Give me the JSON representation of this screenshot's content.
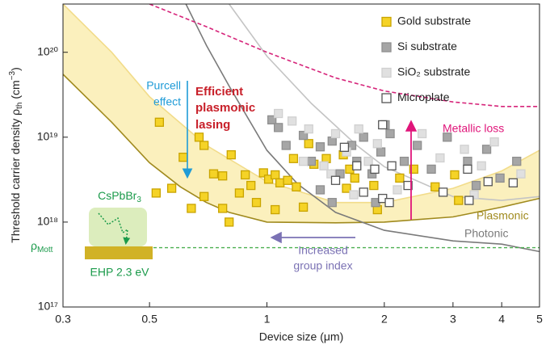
{
  "chart_data": {
    "type": "scatter",
    "x_label": "Device size (μm)",
    "y_label": {
      "text": "Threshold carrier density ρ",
      "sub": "th",
      "unit_open": " (cm",
      "sup": "−3",
      "unit_close": ")"
    },
    "xscale": "log",
    "yscale": "log",
    "xlim": [
      0.3,
      5
    ],
    "ylim": [
      1e+17,
      3.7e+20
    ],
    "xticks": [
      0.3,
      0.5,
      1,
      2,
      3,
      4,
      5
    ],
    "yticks": [
      {
        "value": 1e+17,
        "label": "10¹⁷"
      },
      {
        "value": 1e+18,
        "label": "10¹⁸"
      },
      {
        "value": 1e+19,
        "label": "10¹⁹"
      },
      {
        "value": 1e+20,
        "label": "10²⁰"
      }
    ],
    "legend": "upper right",
    "series": [
      {
        "name": "Gold substrate",
        "color": "#f5d327",
        "edge_color": "#c9a400",
        "x": [
          0.53,
          0.52,
          0.57,
          0.61,
          0.67,
          0.69,
          0.73,
          0.77,
          0.81,
          0.88,
          0.91,
          0.85,
          0.98,
          1.01,
          1.05,
          1.08,
          1.13,
          1.19,
          0.94,
          0.8,
          0.77,
          0.69,
          0.64,
          1.17,
          1.28,
          1.32,
          1.42,
          1.57,
          1.63,
          1.68,
          1.6,
          1.88,
          1.92,
          2.19,
          2.38,
          2.7,
          3.03,
          3.1,
          1.24,
          1.05
        ],
        "values": [
          1.5e+19,
          2.2e+18,
          2.5e+18,
          5.8e+18,
          1e+19,
          8e+18,
          3.7e+18,
          3.5e+18,
          6.2e+18,
          3.6e+18,
          2.7e+18,
          2.2e+18,
          3.8e+18,
          3.2e+18,
          3.6e+18,
          2.9e+18,
          3.1e+18,
          2.6e+18,
          1.7e+18,
          1e+18,
          1.45e+18,
          2e+18,
          1.45e+18,
          5.6e+18,
          8.4e+18,
          4.8e+18,
          5.6e+18,
          6.2e+18,
          4.2e+18,
          3.3e+18,
          2.5e+18,
          2.7e+18,
          1.4e+18,
          3.3e+18,
          4.2e+18,
          2.6e+18,
          3.6e+18,
          1.8e+18,
          1.5e+18,
          1.4e+18
        ]
      },
      {
        "name": "Si substrate",
        "color": "#a6a6a6",
        "edge_color": "#8f8f8f",
        "x": [
          1.03,
          1.07,
          1.12,
          1.24,
          1.3,
          1.37,
          1.47,
          1.54,
          1.65,
          1.7,
          1.77,
          1.86,
          1.96,
          2.07,
          2.25,
          2.43,
          2.64,
          2.9,
          3.27,
          3.44,
          3.66,
          3.96,
          4.37,
          1.37,
          1.47,
          2.01,
          1.9
        ],
        "values": [
          1.6e+19,
          1.3e+19,
          8e+18,
          1.05e+19,
          5.2e+18,
          7.7e+18,
          9e+18,
          3.7e+18,
          8e+18,
          5.2e+18,
          1e+19,
          3.7e+18,
          6.7e+18,
          1.1e+19,
          5.2e+18,
          8e+18,
          4.2e+18,
          1e+19,
          5.2e+18,
          2.7e+18,
          7.2e+18,
          3.3e+18,
          5.2e+18,
          2.4e+18,
          1.7e+18,
          1.4e+19,
          1.7e+18
        ]
      },
      {
        "name": "SiO₂ substrate",
        "color": "#e0e0e0",
        "edge_color": "#d0d0d0",
        "x": [
          1.07,
          1.16,
          1.28,
          1.24,
          1.4,
          1.5,
          1.6,
          1.67,
          1.82,
          1.92,
          2.16,
          2.5,
          2.78,
          3.21,
          3.55,
          3.83,
          3.4,
          4.48,
          1.46,
          1.72
        ],
        "values": [
          1.9e+19,
          1.55e+19,
          1.25e+19,
          5.2e+18,
          4.6e+18,
          1.1e+19,
          6.7e+18,
          2.1e+18,
          5.2e+18,
          8.4e+18,
          2.4e+18,
          1.1e+19,
          5.7e+18,
          7.2e+18,
          4.6e+18,
          8.8e+18,
          2.1e+18,
          3.7e+18,
          3.7e+18,
          1.25e+19
        ]
      },
      {
        "name": "Microplate",
        "color": "#ffffff",
        "edge_color": "#555555",
        "x": [
          1.58,
          1.5,
          1.7,
          1.77,
          1.89,
          1.98,
          1.98,
          2.09,
          2.3,
          2.83,
          3.27,
          3.3,
          3.69,
          4.28,
          2.06
        ],
        "values": [
          7.6e+18,
          3.1e+18,
          4.6e+18,
          2.25e+18,
          4.2e+18,
          1.9e+18,
          1.4e+19,
          4.6e+18,
          2.7e+18,
          2.25e+18,
          4.2e+18,
          1.8e+18,
          3e+18,
          2.9e+18,
          1.7e+18
        ]
      }
    ],
    "curves": [
      {
        "name": "Plasmonic",
        "color": "#a08a1e",
        "x": [
          0.3,
          0.4,
          0.5,
          0.6,
          0.7,
          0.8,
          1,
          1.5,
          2,
          3,
          4,
          5
        ],
        "values": [
          5.5e+19,
          1.5e+19,
          5e+18,
          2.6e+18,
          1.7e+18,
          1.3e+18,
          1e+18,
          9.8e+17,
          1e+18,
          1.15e+18,
          1.5e+18,
          1.9e+18
        ]
      },
      {
        "color": "#f2dc8a",
        "fill": "#fbf0bd",
        "x": [
          0.3,
          0.4,
          0.5,
          0.7,
          1,
          1.5,
          2,
          3,
          4,
          5
        ],
        "values": [
          3.7e+20,
          1e+20,
          3e+19,
          8e+18,
          3e+18,
          1.7e+18,
          1.7e+18,
          2.5e+18,
          4e+18,
          7e+18
        ]
      },
      {
        "name": "Photonic",
        "color": "#7a7a7a",
        "x": [
          0.62,
          0.7,
          0.8,
          1,
          1.2,
          1.5,
          2,
          3,
          4,
          5
        ],
        "values": [
          3.7e+20,
          1.2e+20,
          4e+19,
          7e+18,
          2.8e+18,
          1.3e+18,
          8e+17,
          6e+17,
          5.5e+17,
          4.5e+17
        ]
      },
      {
        "color": "#c4c4c4",
        "x": [
          0.8,
          1,
          1.3,
          1.7,
          2,
          3,
          4,
          5
        ],
        "values": [
          3.7e+20,
          9e+19,
          2.5e+19,
          8e+18,
          4.5e+18,
          2e+18,
          1.8e+18,
          2e+18
        ]
      },
      {
        "color": "#d6247a",
        "dash": true,
        "x": [
          0.5,
          0.7,
          1,
          1.5,
          2,
          3,
          4,
          5
        ],
        "values": [
          3.7e+20,
          2e+20,
          1e+20,
          5e+19,
          3.5e+19,
          2.6e+19,
          2.3e+19,
          2.3e+19
        ]
      }
    ],
    "mott_level": 5e+17,
    "mott_color": "#4cb050",
    "annotations": {
      "purcell": [
        "Purcell",
        "effect"
      ],
      "plasmonic_lasing": [
        "Efficient",
        "plasmonic",
        "lasing"
      ],
      "metallic_loss": "Metallic loss",
      "group_index": [
        "Increased",
        "group index"
      ],
      "material": {
        "text": "CsPbBr",
        "sub": "3"
      },
      "ehp": "EHP 2.3 eV",
      "mott": {
        "text": "ρ",
        "sub": "Mott"
      }
    }
  }
}
